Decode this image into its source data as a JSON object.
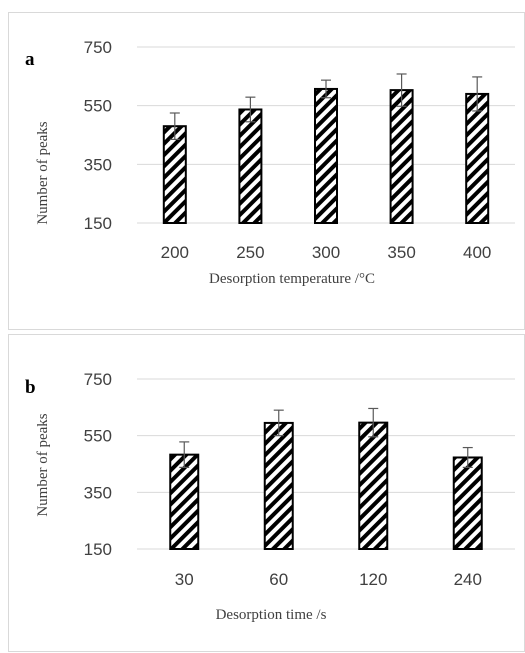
{
  "chart_data": [
    {
      "type": "bar",
      "panel_label": "a",
      "categories": [
        "200",
        "250",
        "300",
        "350",
        "400"
      ],
      "values": [
        480,
        537,
        607,
        603,
        590
      ],
      "error": [
        45,
        42,
        30,
        55,
        58
      ],
      "xlabel": "Desorption temperature /°C",
      "ylabel": "Number of peaks",
      "ylim": [
        150,
        750
      ],
      "yticks": [
        "150",
        "350",
        "550",
        "750"
      ],
      "grid": true,
      "bar_pattern": "diagonal-hatch",
      "bar_color": "#000000"
    },
    {
      "type": "bar",
      "panel_label": "b",
      "categories": [
        "30",
        "60",
        "120",
        "240"
      ],
      "values": [
        483,
        595,
        596,
        473
      ],
      "error": [
        45,
        45,
        50,
        35
      ],
      "xlabel": "Desorption time /s",
      "ylabel": "Number of peaks",
      "ylim": [
        150,
        750
      ],
      "yticks": [
        "150",
        "350",
        "550",
        "750"
      ],
      "grid": true,
      "bar_pattern": "diagonal-hatch",
      "bar_color": "#000000"
    }
  ]
}
